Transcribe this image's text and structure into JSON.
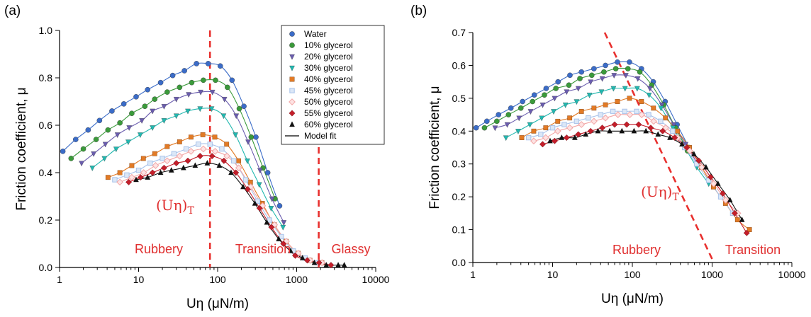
{
  "colors": {
    "Water": "#3b6cc8",
    "10% glycerol": "#3a9a3a",
    "20% glycerol": "#6a5cae",
    "30% glycerol": "#22b8b0",
    "40% glycerol": "#e27a25",
    "45% glycerol": "#a9c3ea",
    "50% glycerol": "#f2a6a6",
    "55% glycerol": "#c41e2a",
    "60% glycerol": "#111111",
    "Model fit": "#000000",
    "annotation": "#e03030"
  },
  "markers": {
    "Water": "circle",
    "10% glycerol": "circle",
    "20% glycerol": "triangle-down",
    "30% glycerol": "triangle-down",
    "40% glycerol": "square",
    "45% glycerol": "square-open",
    "50% glycerol": "diamond-open",
    "55% glycerol": "diamond",
    "60% glycerol": "triangle-up"
  },
  "chart_data": [
    {
      "type": "scatter",
      "panel_label": "(a)",
      "xlabel": "Uη (μN/m)",
      "ylabel": "Friction coefficient, μ",
      "x_scale": "log",
      "xlim": [
        1,
        10000
      ],
      "ylim": [
        0,
        1.0
      ],
      "x_ticks": [
        "1",
        "10",
        "100",
        "1000",
        "10000"
      ],
      "y_ticks": [
        "0.0",
        "0.2",
        "0.4",
        "0.6",
        "0.8",
        "1.0"
      ],
      "grid": false,
      "legend_position": "top-right",
      "legend": [
        "Water",
        "10% glycerol",
        "20% glycerol",
        "30% glycerol",
        "40% glycerol",
        "45% glycerol",
        "50% glycerol",
        "55% glycerol",
        "60% glycerol",
        "Model fit"
      ],
      "regions": [
        "Rubbery",
        "Transition",
        "Glassy"
      ],
      "annotations": [
        {
          "text": "(Uη)",
          "subscript": "T"
        }
      ],
      "reference_lines": [
        {
          "kind": "vertical",
          "x": 80
        },
        {
          "kind": "vertical",
          "x": 1900
        }
      ],
      "series": [
        {
          "name": "Water",
          "x": [
            1.1,
            1.6,
            2.3,
            3.2,
            4.6,
            6.5,
            9.3,
            13,
            19,
            27,
            38,
            54,
            76,
            108,
            152,
            215,
            305,
            430,
            608
          ],
          "y": [
            0.49,
            0.54,
            0.58,
            0.62,
            0.66,
            0.69,
            0.72,
            0.75,
            0.78,
            0.81,
            0.83,
            0.86,
            0.86,
            0.85,
            0.79,
            0.68,
            0.55,
            0.4,
            0.26
          ]
        },
        {
          "name": "10% glycerol",
          "x": [
            1.4,
            2.0,
            2.9,
            4.1,
            5.8,
            8.2,
            12,
            16,
            23,
            33,
            47,
            66,
            94,
            133,
            188,
            266,
            376,
            532
          ],
          "y": [
            0.46,
            0.5,
            0.54,
            0.58,
            0.61,
            0.65,
            0.68,
            0.71,
            0.74,
            0.76,
            0.78,
            0.79,
            0.79,
            0.76,
            0.67,
            0.55,
            0.42,
            0.29
          ]
        },
        {
          "name": "20% glycerol",
          "x": [
            1.9,
            2.7,
            3.8,
            5.4,
            7.6,
            11,
            15,
            21,
            30,
            43,
            61,
            86,
            122,
            172,
            243,
            344,
            486,
            687
          ],
          "y": [
            0.44,
            0.48,
            0.52,
            0.56,
            0.59,
            0.62,
            0.66,
            0.68,
            0.71,
            0.73,
            0.74,
            0.74,
            0.71,
            0.64,
            0.53,
            0.41,
            0.29,
            0.19
          ]
        },
        {
          "name": "30% glycerol",
          "x": [
            2.6,
            3.7,
            5.2,
            7.4,
            10.5,
            15,
            21,
            30,
            42,
            60,
            84,
            119,
            168,
            238,
            336,
            475,
            672
          ],
          "y": [
            0.42,
            0.46,
            0.5,
            0.53,
            0.56,
            0.59,
            0.62,
            0.64,
            0.66,
            0.67,
            0.67,
            0.64,
            0.56,
            0.45,
            0.35,
            0.25,
            0.17
          ]
        },
        {
          "name": "40% glycerol",
          "x": [
            4.1,
            5.8,
            8.2,
            11.5,
            16,
            23,
            33,
            46,
            65,
            92,
            130,
            184,
            260,
            368,
            520,
            735,
            1040,
            1470,
            2080
          ],
          "y": [
            0.38,
            0.4,
            0.43,
            0.46,
            0.48,
            0.51,
            0.53,
            0.55,
            0.56,
            0.55,
            0.52,
            0.45,
            0.36,
            0.27,
            0.18,
            0.11,
            0.06,
            0.03,
            0.02
          ]
        },
        {
          "name": "45% glycerol",
          "x": [
            5.0,
            7.1,
            10,
            14,
            20,
            28,
            40,
            57,
            80,
            113,
            160,
            226,
            320,
            452,
            640,
            905,
            1280,
            1810
          ],
          "y": [
            0.37,
            0.39,
            0.41,
            0.44,
            0.46,
            0.48,
            0.5,
            0.52,
            0.52,
            0.5,
            0.45,
            0.37,
            0.28,
            0.2,
            0.13,
            0.07,
            0.04,
            0.02
          ]
        },
        {
          "name": "50% glycerol",
          "x": [
            5.8,
            8.2,
            11.6,
            16.4,
            23,
            33,
            46,
            66,
            93,
            131,
            185,
            262,
            370,
            524,
            740,
            1047,
            1480,
            2094
          ],
          "y": [
            0.36,
            0.38,
            0.4,
            0.43,
            0.45,
            0.47,
            0.49,
            0.5,
            0.49,
            0.47,
            0.42,
            0.34,
            0.26,
            0.18,
            0.11,
            0.06,
            0.03,
            0.02
          ]
        },
        {
          "name": "55% glycerol",
          "x": [
            7.5,
            10.6,
            15,
            21,
            30,
            42,
            60,
            85,
            120,
            170,
            240,
            340,
            480,
            680,
            960,
            1360,
            1920,
            2715
          ],
          "y": [
            0.36,
            0.38,
            0.4,
            0.42,
            0.44,
            0.45,
            0.47,
            0.47,
            0.45,
            0.4,
            0.33,
            0.25,
            0.17,
            0.1,
            0.05,
            0.03,
            0.02,
            0.01
          ]
        },
        {
          "name": "60% glycerol",
          "x": [
            9.3,
            13,
            19,
            26,
            37,
            52,
            74,
            105,
            148,
            210,
            296,
            419,
            592,
            838,
            1185,
            1676,
            2370,
            3352,
            4000
          ],
          "y": [
            0.37,
            0.38,
            0.4,
            0.41,
            0.42,
            0.43,
            0.44,
            0.43,
            0.4,
            0.34,
            0.27,
            0.19,
            0.12,
            0.07,
            0.04,
            0.02,
            0.01,
            0.01,
            0.01
          ]
        }
      ]
    },
    {
      "type": "scatter",
      "panel_label": "(b)",
      "xlabel": "Uη (μN/m)",
      "ylabel": "Friction coefficient, μ",
      "x_scale": "log",
      "xlim": [
        1,
        10000
      ],
      "ylim": [
        0,
        0.7
      ],
      "x_ticks": [
        "1",
        "10",
        "100",
        "1000",
        "10000"
      ],
      "y_ticks": [
        "0.0",
        "0.1",
        "0.2",
        "0.3",
        "0.4",
        "0.5",
        "0.6",
        "0.7"
      ],
      "grid": false,
      "regions": [
        "Rubbery",
        "Transition"
      ],
      "annotations": [
        {
          "text": "(Uη)",
          "subscript": "T"
        }
      ],
      "reference_lines": [
        {
          "kind": "diagonal",
          "from": [
            45,
            0.7
          ],
          "to": [
            1050,
            0.0
          ]
        }
      ],
      "series": [
        {
          "name": "Water",
          "x": [
            1.1,
            1.5,
            2.1,
            3.0,
            4.2,
            5.9,
            8.3,
            11.7,
            16.5,
            23,
            33,
            46,
            65,
            92,
            130,
            183,
            258,
            364,
            513
          ],
          "y": [
            0.41,
            0.43,
            0.45,
            0.47,
            0.49,
            0.51,
            0.53,
            0.55,
            0.57,
            0.58,
            0.59,
            0.6,
            0.61,
            0.61,
            0.59,
            0.55,
            0.49,
            0.42,
            0.35
          ]
        },
        {
          "name": "10% glycerol",
          "x": [
            1.4,
            2.0,
            2.8,
            4.0,
            5.6,
            7.9,
            11,
            16,
            22,
            31,
            44,
            62,
            88,
            124,
            175,
            247,
            348,
            491
          ],
          "y": [
            0.41,
            0.43,
            0.45,
            0.47,
            0.49,
            0.51,
            0.53,
            0.54,
            0.56,
            0.57,
            0.58,
            0.59,
            0.59,
            0.58,
            0.54,
            0.48,
            0.41,
            0.34
          ]
        },
        {
          "name": "20% glycerol",
          "x": [
            1.9,
            2.7,
            3.8,
            5.3,
            7.5,
            10.6,
            15,
            21,
            30,
            42,
            59,
            83,
            117,
            166,
            234,
            330,
            466,
            658
          ],
          "y": [
            0.41,
            0.42,
            0.44,
            0.46,
            0.48,
            0.5,
            0.52,
            0.53,
            0.55,
            0.56,
            0.57,
            0.57,
            0.56,
            0.53,
            0.48,
            0.42,
            0.36,
            0.3
          ]
        },
        {
          "name": "30% glycerol",
          "x": [
            2.6,
            3.7,
            5.2,
            7.3,
            10.3,
            14.5,
            20,
            29,
            41,
            58,
            81,
            115,
            162,
            229,
            323,
            456,
            643,
            907
          ],
          "y": [
            0.38,
            0.4,
            0.42,
            0.44,
            0.46,
            0.48,
            0.49,
            0.51,
            0.52,
            0.53,
            0.53,
            0.53,
            0.51,
            0.47,
            0.41,
            0.35,
            0.29,
            0.24
          ]
        },
        {
          "name": "40% glycerol",
          "x": [
            4.1,
            5.8,
            8.2,
            11.6,
            16.4,
            23,
            33,
            46,
            65,
            92,
            130,
            184,
            260,
            368,
            520,
            735,
            1040,
            1470,
            2080,
            2940
          ],
          "y": [
            0.38,
            0.4,
            0.41,
            0.43,
            0.44,
            0.46,
            0.47,
            0.48,
            0.49,
            0.5,
            0.49,
            0.47,
            0.44,
            0.4,
            0.35,
            0.29,
            0.23,
            0.18,
            0.13,
            0.1
          ]
        },
        {
          "name": "45% glycerol",
          "x": [
            5.0,
            7.1,
            10,
            14,
            20,
            28,
            40,
            57,
            80,
            113,
            160,
            226,
            320,
            452,
            640,
            905,
            1280,
            1810
          ],
          "y": [
            0.38,
            0.39,
            0.41,
            0.42,
            0.43,
            0.44,
            0.45,
            0.46,
            0.46,
            0.46,
            0.45,
            0.43,
            0.4,
            0.35,
            0.3,
            0.25,
            0.2,
            0.15
          ]
        },
        {
          "name": "50% glycerol",
          "x": [
            5.8,
            8.2,
            11.6,
            16.4,
            23,
            33,
            46,
            66,
            93,
            131,
            185,
            262,
            370,
            524,
            740,
            1047,
            1480,
            2094
          ],
          "y": [
            0.37,
            0.38,
            0.4,
            0.41,
            0.42,
            0.43,
            0.44,
            0.45,
            0.45,
            0.45,
            0.43,
            0.41,
            0.38,
            0.34,
            0.29,
            0.24,
            0.19,
            0.15
          ]
        },
        {
          "name": "55% glycerol",
          "x": [
            7.5,
            10.6,
            15,
            21,
            30,
            42,
            60,
            85,
            120,
            170,
            240,
            340,
            480,
            680,
            960,
            1360,
            1920,
            2715
          ],
          "y": [
            0.36,
            0.37,
            0.38,
            0.39,
            0.4,
            0.41,
            0.42,
            0.42,
            0.42,
            0.41,
            0.4,
            0.38,
            0.35,
            0.31,
            0.26,
            0.21,
            0.15,
            0.09
          ]
        },
        {
          "name": "60% glycerol",
          "x": [
            9.3,
            13,
            19,
            26,
            37,
            52,
            74,
            105,
            148,
            210,
            296,
            419,
            592,
            838,
            1185,
            1676,
            2370
          ],
          "y": [
            0.37,
            0.38,
            0.38,
            0.39,
            0.4,
            0.4,
            0.4,
            0.4,
            0.4,
            0.39,
            0.38,
            0.36,
            0.33,
            0.29,
            0.24,
            0.19,
            0.13
          ]
        }
      ]
    }
  ]
}
